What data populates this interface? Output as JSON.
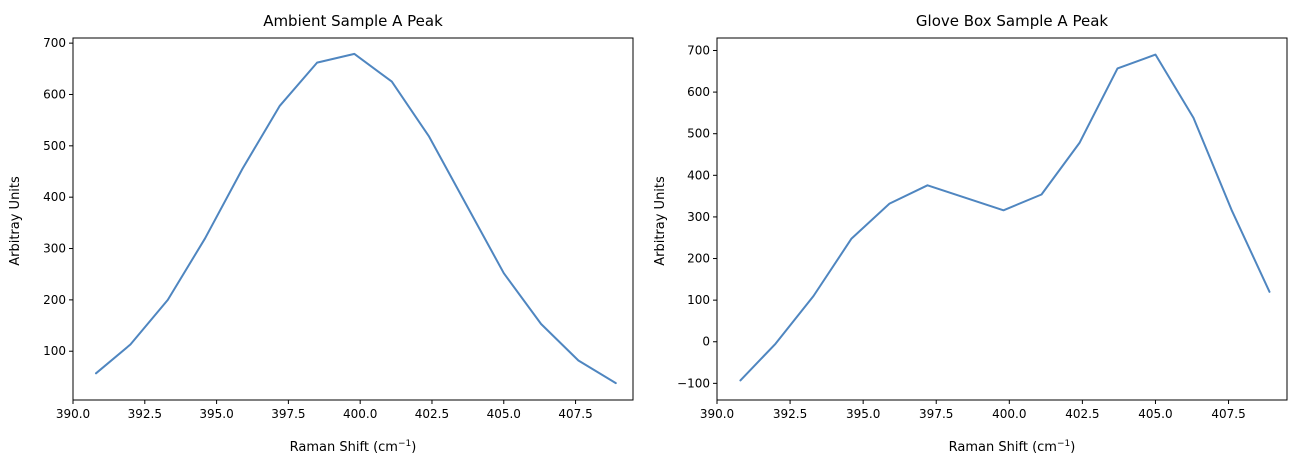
{
  "chart_data": [
    {
      "type": "line",
      "title": "Ambient Sample A Peak",
      "xlabel": "Raman Shift (cm",
      "xlabel_superscript": "−1",
      "xlabel_suffix": ")",
      "ylabel": "Arbitray Units",
      "xlim": [
        390.0,
        409.5
      ],
      "ylim": [
        5,
        710
      ],
      "xticks": [
        390.0,
        392.5,
        395.0,
        397.5,
        400.0,
        402.5,
        405.0,
        407.5
      ],
      "xtick_labels": [
        "390.0",
        "392.5",
        "395.0",
        "397.5",
        "400.0",
        "402.5",
        "405.0",
        "407.5"
      ],
      "yticks": [
        100,
        200,
        300,
        400,
        500,
        600,
        700
      ],
      "ytick_labels": [
        "100",
        "200",
        "300",
        "400",
        "500",
        "600",
        "700"
      ],
      "grid": false,
      "color": "#4f86c0",
      "series": [
        {
          "x": [
            390.8,
            392.0,
            393.3,
            394.6,
            395.9,
            397.2,
            398.5,
            399.8,
            401.1,
            402.4,
            403.7,
            405.0,
            406.3,
            407.6,
            408.9
          ],
          "y": [
            57,
            113,
            200,
            320,
            455,
            578,
            662,
            679,
            625,
            518,
            385,
            252,
            153,
            82,
            38
          ]
        }
      ]
    },
    {
      "type": "line",
      "title": "Glove Box Sample A Peak",
      "xlabel": "Raman Shift (cm",
      "xlabel_superscript": "−1",
      "xlabel_suffix": ")",
      "ylabel": "Arbitray Units",
      "xlim": [
        390.0,
        409.5
      ],
      "ylim": [
        -140,
        730
      ],
      "xticks": [
        390.0,
        392.5,
        395.0,
        397.5,
        400.0,
        402.5,
        405.0,
        407.5
      ],
      "xtick_labels": [
        "390.0",
        "392.5",
        "395.0",
        "397.5",
        "400.0",
        "402.5",
        "405.0",
        "407.5"
      ],
      "yticks": [
        -100,
        0,
        100,
        200,
        300,
        400,
        500,
        600,
        700
      ],
      "ytick_labels": [
        "−100",
        "0",
        "100",
        "200",
        "300",
        "400",
        "500",
        "600",
        "700"
      ],
      "grid": false,
      "color": "#4f86c0",
      "series": [
        {
          "x": [
            390.8,
            392.0,
            393.3,
            394.6,
            395.9,
            397.2,
            398.5,
            399.8,
            401.1,
            402.4,
            403.7,
            405.0,
            406.3,
            407.6,
            408.9
          ],
          "y": [
            -93,
            -5,
            110,
            248,
            332,
            376,
            346,
            316,
            354,
            478,
            657,
            690,
            538,
            317,
            120
          ]
        }
      ]
    }
  ]
}
